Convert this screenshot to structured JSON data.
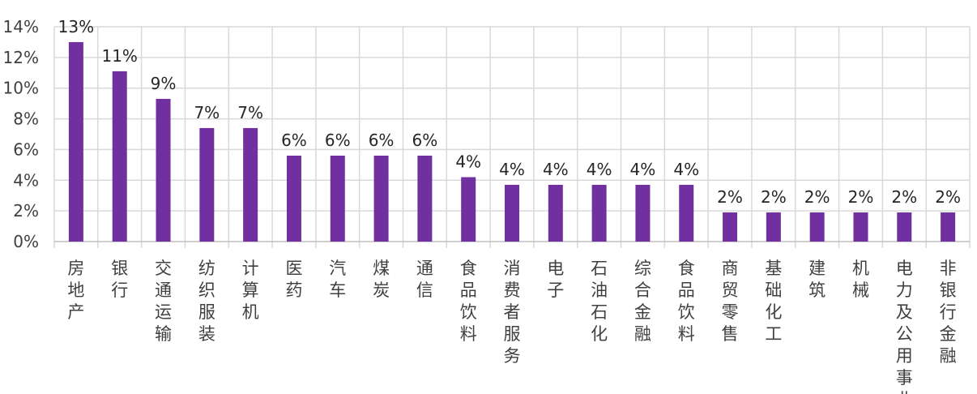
{
  "chart_data": {
    "type": "bar",
    "title": "",
    "xlabel": "",
    "ylabel": "",
    "ylim": [
      0,
      14
    ],
    "y_tick_values": [
      0,
      2,
      4,
      6,
      8,
      10,
      12,
      14
    ],
    "y_tick_labels": [
      "0%",
      "2%",
      "4%",
      "6%",
      "8%",
      "10%",
      "12%",
      "14%"
    ],
    "grid": true,
    "legend": "none",
    "bar_color": "#7030a0",
    "categories": [
      "房地产",
      "银行",
      "交通运输",
      "纺织服装",
      "计算机",
      "医药",
      "汽车",
      "煤炭",
      "通信",
      "食品饮料",
      "消费者服务",
      "电子",
      "石油石化",
      "综合金融",
      "食品饮料",
      "商贸零售",
      "基础化工",
      "建筑",
      "机械",
      "电力及公用事业",
      "非银行金融"
    ],
    "values": [
      13.0,
      11.1,
      9.3,
      7.4,
      7.4,
      5.6,
      5.6,
      5.6,
      5.6,
      4.2,
      3.7,
      3.7,
      3.7,
      3.7,
      3.7,
      1.9,
      1.9,
      1.9,
      1.9,
      1.9,
      1.9
    ],
    "data_labels": [
      "13%",
      "11%",
      "9%",
      "7%",
      "7%",
      "6%",
      "6%",
      "6%",
      "6%",
      "4%",
      "4%",
      "4%",
      "4%",
      "4%",
      "4%",
      "2%",
      "2%",
      "2%",
      "2%",
      "2%",
      "2%"
    ]
  }
}
